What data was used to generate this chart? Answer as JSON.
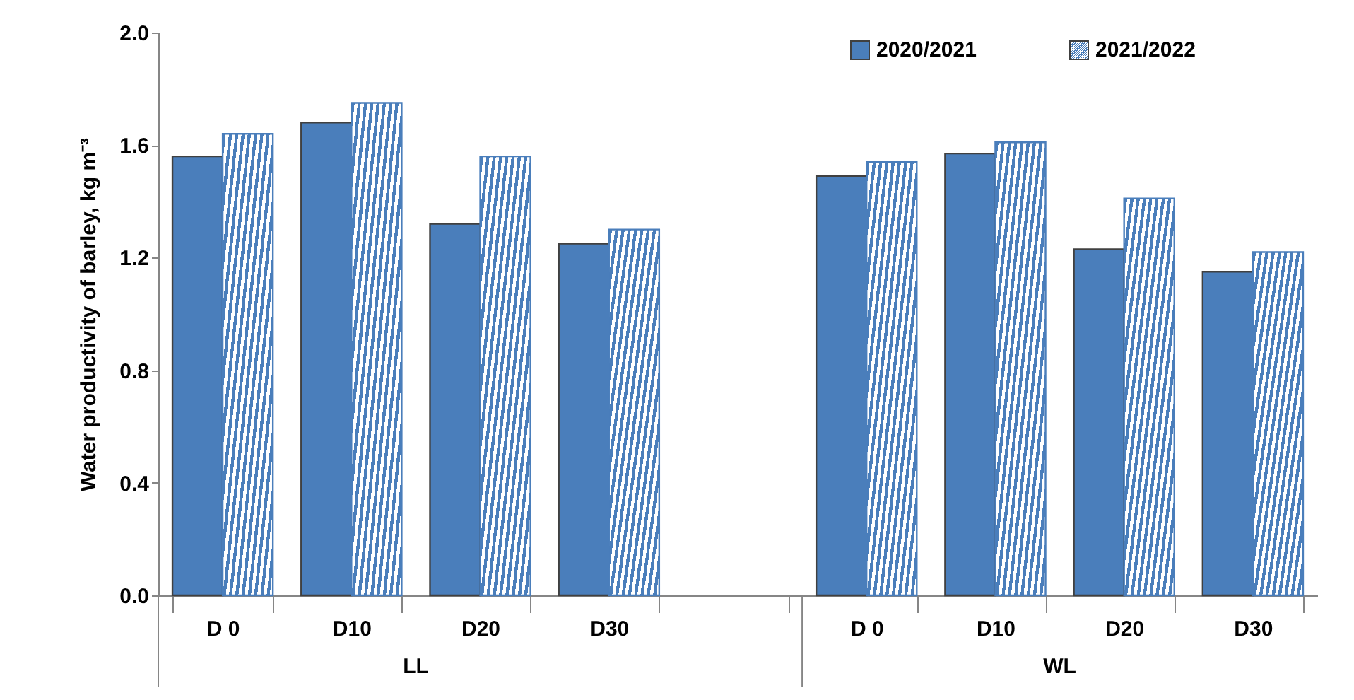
{
  "chart_data": {
    "type": "bar",
    "ylabel": "Water productivity of barley, kg m⁻³",
    "categories": [
      "D 0",
      "D10",
      "D20",
      "D30",
      null,
      "D 0",
      "D10",
      "D20",
      "D30"
    ],
    "series": [
      {
        "name": "2020/2021",
        "color": "#4a7ebb",
        "values": [
          1.56,
          1.68,
          1.32,
          1.25,
          null,
          1.49,
          1.57,
          1.23,
          1.15
        ]
      },
      {
        "name": "2021/2022",
        "color": "#4a7ebb",
        "values": [
          1.64,
          1.75,
          1.56,
          1.3,
          null,
          1.54,
          1.61,
          1.41,
          1.22
        ]
      }
    ],
    "annotations": [
      "LL",
      "WL"
    ],
    "ylim": [
      0,
      2.0
    ],
    "yticks": [
      {
        "value": 0,
        "label": "0.0"
      },
      0.4,
      0.8,
      1.2,
      1.6,
      {
        "value": 2.0,
        "label": "2.0"
      }
    ],
    "grid": false,
    "legend": "top right"
  }
}
